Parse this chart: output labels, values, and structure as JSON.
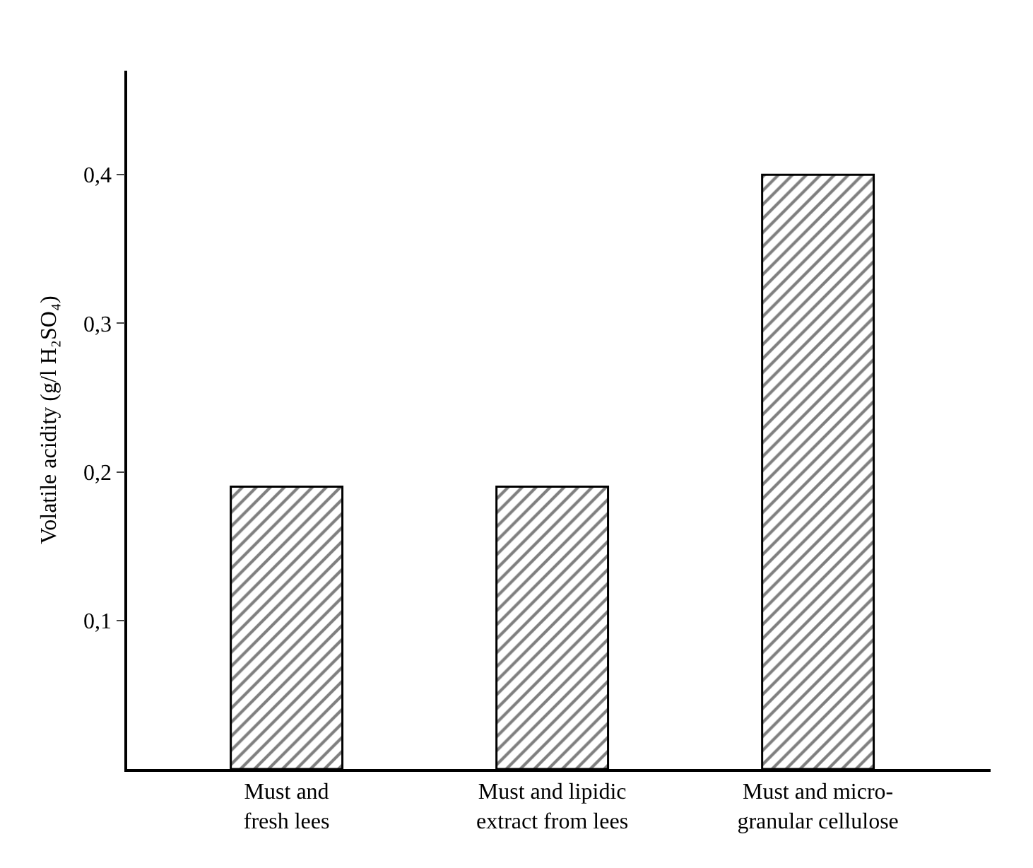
{
  "chart_data": {
    "type": "bar",
    "ylabel": "Volatile acidity (g/l H₂SO₄)",
    "categories": [
      "Must and\nfresh lees",
      "Must and lipidic\nextract from lees",
      "Must and micro-\ngranular cellulose"
    ],
    "values": [
      0.19,
      0.19,
      0.4
    ],
    "color": "#000000",
    "ylim": [
      0,
      0.47
    ],
    "yticks": [
      {
        "value": 0.1,
        "label": "0,1"
      },
      {
        "value": 0.2,
        "label": "0,2"
      },
      {
        "value": 0.3,
        "label": "0,3"
      },
      {
        "value": 0.4,
        "label": "0,4"
      }
    ],
    "legend": false
  }
}
